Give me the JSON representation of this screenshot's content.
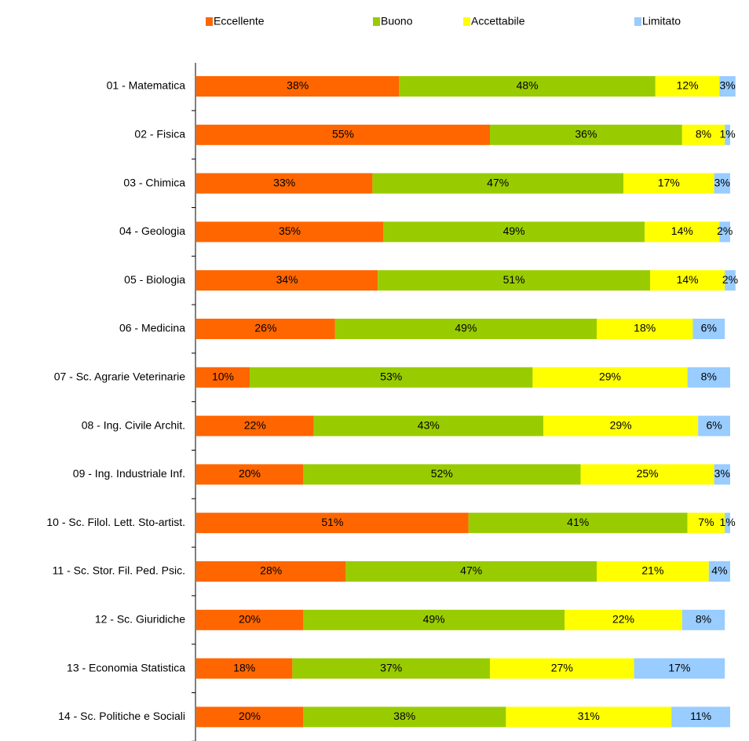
{
  "chart_data": {
    "type": "bar",
    "orientation": "horizontal",
    "stacked": true,
    "categories": [
      "01 - Matematica",
      "02 - Fisica",
      "03 - Chimica",
      "04 - Geologia",
      "05 - Biologia",
      "06 - Medicina",
      "07 - Sc. Agrarie Veterinarie",
      "08 - Ing. Civile Archit.",
      "09 - Ing. Industriale Inf.",
      "10 - Sc. Filol. Lett. Sto-artist.",
      "11 - Sc. Stor. Fil. Ped. Psic.",
      "12 - Sc. Giuridiche",
      "13 - Economia Statistica",
      "14 - Sc. Politiche e Sociali"
    ],
    "series": [
      {
        "name": "Eccellente",
        "color": "#ff6600",
        "values": [
          38,
          55,
          33,
          35,
          34,
          26,
          10,
          22,
          20,
          51,
          28,
          20,
          18,
          20
        ],
        "value_labels": [
          "38%",
          "55%",
          "33%",
          "35%",
          "34%",
          "26%",
          "10%",
          "22%",
          "20%",
          "51%",
          "28%",
          "20%",
          "18%",
          "20%"
        ]
      },
      {
        "name": "Buono",
        "color": "#99cc00",
        "values": [
          48,
          36,
          47,
          49,
          51,
          49,
          53,
          43,
          52,
          41,
          47,
          49,
          37,
          38
        ],
        "value_labels": [
          "48%",
          "36%",
          "47%",
          "49%",
          "51%",
          "49%",
          "53%",
          "43%",
          "52%",
          "41%",
          "47%",
          "49%",
          "37%",
          "38%"
        ]
      },
      {
        "name": "Accettabile",
        "color": "#ffff00",
        "values": [
          12,
          8,
          17,
          14,
          14,
          18,
          29,
          29,
          25,
          7,
          21,
          22,
          27,
          31
        ],
        "value_labels": [
          "12%",
          "8%",
          "17%",
          "14%",
          "14%",
          "18%",
          "29%",
          "29%",
          "25%",
          "7%",
          "21%",
          "22%",
          "27%",
          "31%"
        ]
      },
      {
        "name": "Limitato",
        "color": "#99ccff",
        "values": [
          3,
          1,
          3,
          2,
          2,
          6,
          8,
          6,
          3,
          1,
          4,
          8,
          17,
          11
        ],
        "value_labels": [
          "3%",
          "1%",
          "3%",
          "2%",
          "2%",
          "6%",
          "8%",
          "6%",
          "3%",
          "1%",
          "4%",
          "8%",
          "17%",
          "11%"
        ]
      }
    ],
    "legend": "top"
  }
}
